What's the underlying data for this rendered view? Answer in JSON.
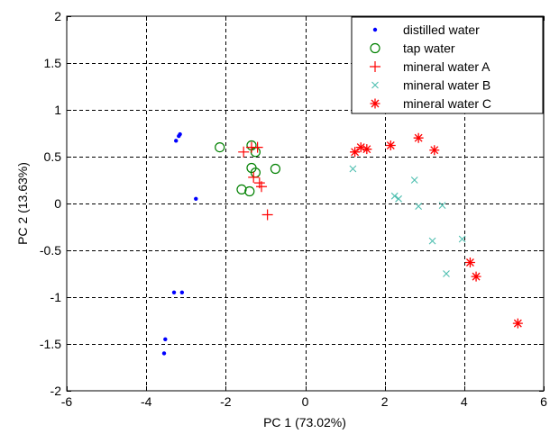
{
  "chart_data": {
    "type": "scatter",
    "xlabel": "PC 1 (73.02%)",
    "ylabel": "PC 2 (13.63%)",
    "xlim": [
      -6,
      6
    ],
    "ylim": [
      -2,
      2
    ],
    "xticks": [
      -6,
      -4,
      -2,
      0,
      2,
      4,
      6
    ],
    "yticks": [
      -2,
      -1.5,
      -1,
      -0.5,
      0,
      0.5,
      1,
      1.5,
      2
    ],
    "xtick_labels": [
      "-6",
      "-4",
      "-2",
      "0",
      "2",
      "4",
      "6"
    ],
    "ytick_labels": [
      "-2",
      "-1.5",
      "-1",
      "-0.5",
      "0",
      "0.5",
      "1",
      "1.5",
      "2"
    ],
    "grid": true,
    "legend_position": "top-right",
    "series": [
      {
        "name": "distilled water",
        "marker": "dot",
        "color": "#0000ff",
        "points": [
          [
            -3.25,
            0.67
          ],
          [
            -3.18,
            0.72
          ],
          [
            -3.15,
            0.74
          ],
          [
            -2.75,
            0.05
          ],
          [
            -3.3,
            -0.95
          ],
          [
            -3.1,
            -0.95
          ],
          [
            -3.52,
            -1.45
          ],
          [
            -3.55,
            -1.6
          ]
        ]
      },
      {
        "name": "tap water",
        "marker": "circle",
        "color": "#008000",
        "points": [
          [
            -2.15,
            0.6
          ],
          [
            -1.35,
            0.62
          ],
          [
            -1.25,
            0.55
          ],
          [
            -1.35,
            0.38
          ],
          [
            -1.25,
            0.33
          ],
          [
            -0.75,
            0.37
          ],
          [
            -1.6,
            0.15
          ],
          [
            -1.4,
            0.13
          ]
        ]
      },
      {
        "name": "mineral water A",
        "marker": "plus",
        "color": "#ff0000",
        "points": [
          [
            -1.55,
            0.55
          ],
          [
            -1.35,
            0.6
          ],
          [
            -1.2,
            0.6
          ],
          [
            -1.3,
            0.28
          ],
          [
            -1.15,
            0.22
          ],
          [
            -1.1,
            0.18
          ],
          [
            -0.95,
            -0.12
          ]
        ]
      },
      {
        "name": "mineral water B",
        "marker": "cross",
        "color": "#4fbfb0",
        "points": [
          [
            1.2,
            0.37
          ],
          [
            2.25,
            0.08
          ],
          [
            2.35,
            0.05
          ],
          [
            2.75,
            0.25
          ],
          [
            2.85,
            -0.03
          ],
          [
            3.2,
            -0.4
          ],
          [
            3.45,
            -0.02
          ],
          [
            3.55,
            -0.75
          ],
          [
            3.95,
            -0.38
          ]
        ]
      },
      {
        "name": "mineral water C",
        "marker": "star",
        "color": "#ff0000",
        "points": [
          [
            1.25,
            0.55
          ],
          [
            1.4,
            0.6
          ],
          [
            1.55,
            0.58
          ],
          [
            2.15,
            0.62
          ],
          [
            2.85,
            0.7
          ],
          [
            3.25,
            0.57
          ],
          [
            4.15,
            -0.63
          ],
          [
            4.3,
            -0.78
          ],
          [
            5.35,
            -1.28
          ]
        ]
      }
    ]
  }
}
